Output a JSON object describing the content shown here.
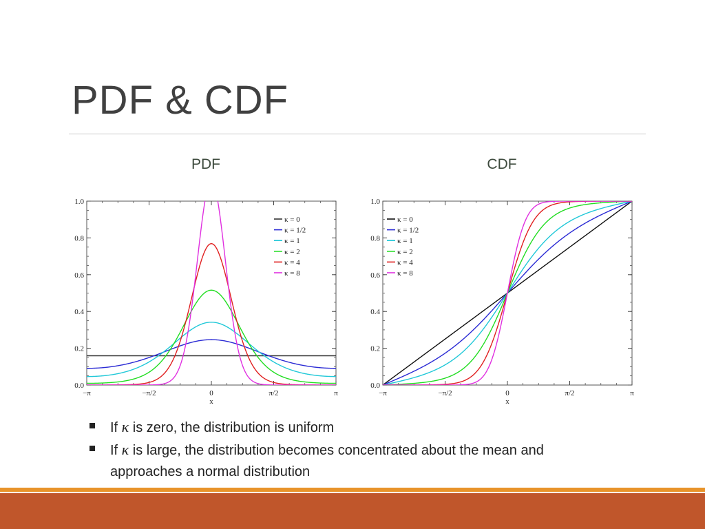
{
  "slide": {
    "title": "PDF & CDF",
    "pdf_heading": "PDF",
    "cdf_heading": "CDF",
    "bullets": [
      {
        "prefix": "If ",
        "symbol": "κ",
        "rest": " is zero, the distribution is uniform"
      },
      {
        "prefix": "If ",
        "symbol": "κ",
        "rest": " is large, the distribution becomes concentrated about the mean and approaches a normal distribution"
      }
    ],
    "footer_colors": {
      "thin": "#e8932a",
      "band": "#c0562b"
    }
  },
  "chart_data": [
    {
      "type": "line",
      "name": "PDF",
      "xlabel": "x",
      "ylabel": "",
      "xlim": [
        -3.14159,
        3.14159
      ],
      "ylim": [
        0,
        1.0
      ],
      "x_ticks": [
        {
          "value": -3.14159,
          "label": "−π"
        },
        {
          "value": -1.5708,
          "label": "−π/2"
        },
        {
          "value": 0,
          "label": "0"
        },
        {
          "value": 1.5708,
          "label": "π/2"
        },
        {
          "value": 3.14159,
          "label": "π"
        }
      ],
      "y_ticks": [
        {
          "value": 0.0,
          "label": "0.0"
        },
        {
          "value": 0.2,
          "label": "0.2"
        },
        {
          "value": 0.4,
          "label": "0.4"
        },
        {
          "value": 0.6,
          "label": "0.6"
        },
        {
          "value": 0.8,
          "label": "0.8"
        },
        {
          "value": 1.0,
          "label": "1.0"
        }
      ],
      "legend_position": "top-right",
      "series": [
        {
          "name": "κ = 0",
          "kappa": 0,
          "color": "#333333"
        },
        {
          "name": "κ = 1/2",
          "kappa": 0.5,
          "color": "#2a2ad4"
        },
        {
          "name": "κ = 1",
          "kappa": 1,
          "color": "#20c8d8"
        },
        {
          "name": "κ = 2",
          "kappa": 2,
          "color": "#22dd22"
        },
        {
          "name": "κ = 4",
          "kappa": 4,
          "color": "#e02020"
        },
        {
          "name": "κ = 8",
          "kappa": 8,
          "color": "#e030e0"
        }
      ]
    },
    {
      "type": "line",
      "name": "CDF",
      "xlabel": "x",
      "ylabel": "",
      "xlim": [
        -3.14159,
        3.14159
      ],
      "ylim": [
        0,
        1.0
      ],
      "x_ticks": [
        {
          "value": -3.14159,
          "label": "−π"
        },
        {
          "value": -1.5708,
          "label": "−π/2"
        },
        {
          "value": 0,
          "label": "0"
        },
        {
          "value": 1.5708,
          "label": "π/2"
        },
        {
          "value": 3.14159,
          "label": "π"
        }
      ],
      "y_ticks": [
        {
          "value": 0.0,
          "label": "0.0"
        },
        {
          "value": 0.2,
          "label": "0.2"
        },
        {
          "value": 0.4,
          "label": "0.4"
        },
        {
          "value": 0.6,
          "label": "0.6"
        },
        {
          "value": 0.8,
          "label": "0.8"
        },
        {
          "value": 1.0,
          "label": "1.0"
        }
      ],
      "legend_position": "top-left",
      "series": [
        {
          "name": "κ = 0",
          "kappa": 0,
          "color": "#111111"
        },
        {
          "name": "κ = 1/2",
          "kappa": 0.5,
          "color": "#2a2ad4"
        },
        {
          "name": "κ = 1",
          "kappa": 1,
          "color": "#20c8d8"
        },
        {
          "name": "κ = 2",
          "kappa": 2,
          "color": "#22dd22"
        },
        {
          "name": "κ = 4",
          "kappa": 4,
          "color": "#e02020"
        },
        {
          "name": "κ = 8",
          "kappa": 8,
          "color": "#e030e0"
        }
      ]
    }
  ]
}
